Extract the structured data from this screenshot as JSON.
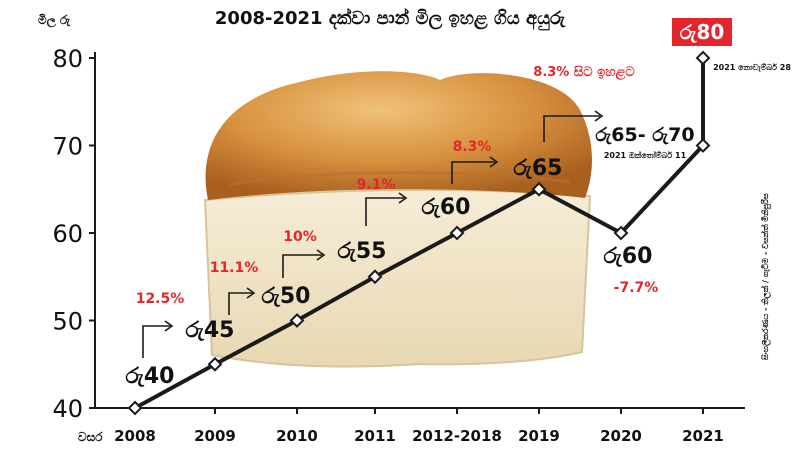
{
  "chart_data": {
    "type": "line",
    "title": "2008-2021 දක්වා පාන් මිල ඉහළ ගිය අයුරු",
    "ylabel": "මිල රු",
    "xlabel": "වසර",
    "categories": [
      "2008",
      "2009",
      "2010",
      "2011",
      "2012-2018",
      "2019",
      "2020",
      "2021",
      "2021"
    ],
    "x_tick_labels": [
      "2008",
      "2009",
      "2010",
      "2011",
      "2012-2018",
      "2019",
      "2020",
      "2021"
    ],
    "values": [
      40,
      45,
      50,
      55,
      60,
      65,
      60,
      70,
      80
    ],
    "ylim": [
      40,
      80
    ],
    "y_ticks": [
      40,
      50,
      60,
      70,
      80
    ],
    "grid": false,
    "line_color": "#1a1a1a",
    "accent_color": "#e3262b",
    "price_labels": [
      "රු40",
      "රු45",
      "රු50",
      "රු55",
      "රු60",
      "රු65",
      "රු60",
      "රු65- රු70",
      "රු80"
    ],
    "percent_labels": [
      "12.5%",
      "11.1%",
      "10%",
      "9.1%",
      "8.3%",
      "-7.7%"
    ],
    "annotation_2021_oct": "2021 ඔක්තෝම්බර් 11",
    "annotation_2021_nov": "2021 නොවැම්බර් 28",
    "annotation_rise": "8.3% සිට ඉහළට",
    "credit": "සිංහලීකරණය - තිලක් / ගැටීම - වසන්ත් මිනිපුරිස"
  }
}
